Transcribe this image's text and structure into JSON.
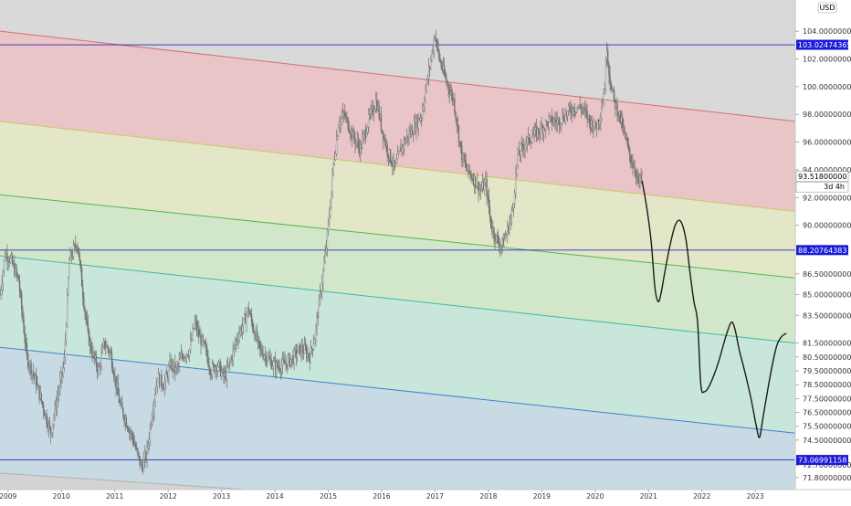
{
  "currency_button": "USD",
  "countdown": "3d 4h",
  "colors": {
    "pane_bg": "#d9d9d9",
    "zone_red": "#eac5c7",
    "zone_yellow": "#e3e6c7",
    "zone_green": "#d2e7c9",
    "zone_teal": "#c9e6da",
    "zone_blue": "#c8dbe4",
    "line_red": "#d07070",
    "line_yellow": "#c8c860",
    "line_green": "#50b850",
    "line_teal": "#40b8a0",
    "line_blue": "#4080d0",
    "hline": "#2828c0",
    "tag_blue": "#1a1ad8",
    "price_series": "#6e6e6e",
    "projection": "#1a1a1a"
  },
  "chart_data": {
    "type": "line",
    "ylim": [
      71.0,
      105.0
    ],
    "xlim": [
      2008.85,
      2023.75
    ],
    "grid": false,
    "y_ticks": [
      "104.00000000",
      "102.00000000",
      "100.00000000",
      "98.00000000",
      "96.00000000",
      "94.00000000",
      "92.00000000",
      "90.00000000",
      "86.50000000",
      "85.00000000",
      "83.50000000",
      "81.50000000",
      "80.50000000",
      "79.50000000",
      "78.50000000",
      "77.50000000",
      "76.50000000",
      "75.50000000",
      "74.50000000",
      "72.70000000",
      "71.80000000"
    ],
    "x_ticks": [
      "2009",
      "2010",
      "2011",
      "2012",
      "2013",
      "2014",
      "2015",
      "2016",
      "2017",
      "2018",
      "2019",
      "2020",
      "2021",
      "2022",
      "2023"
    ],
    "horizontal_levels": [
      {
        "label": "103.02474365",
        "value": 103.02
      },
      {
        "label": "88.20764383",
        "value": 88.21
      },
      {
        "label": "73.06991158",
        "value": 73.07
      }
    ],
    "current_price": {
      "label": "93.51800000",
      "value": 93.52
    },
    "channels": [
      {
        "name": "red",
        "start": [
          2008.85,
          104.0
        ],
        "end": [
          2023.75,
          97.5
        ]
      },
      {
        "name": "yellow",
        "start": [
          2008.85,
          97.5
        ],
        "end": [
          2023.75,
          91.0
        ]
      },
      {
        "name": "green",
        "start": [
          2008.85,
          92.2
        ],
        "end": [
          2023.75,
          86.2
        ]
      },
      {
        "name": "teal",
        "start": [
          2008.85,
          87.8
        ],
        "end": [
          2023.75,
          81.5
        ]
      },
      {
        "name": "blue",
        "start": [
          2008.85,
          81.2
        ],
        "end": [
          2023.75,
          75.0
        ]
      }
    ],
    "series": [
      {
        "type": "price",
        "x": [
          2008.85,
          2008.95,
          2009.05,
          2009.2,
          2009.35,
          2009.5,
          2009.65,
          2009.8,
          2009.92,
          2010.05,
          2010.15,
          2010.3,
          2010.42,
          2010.5,
          2010.6,
          2010.7,
          2010.8,
          2010.92,
          2011.0,
          2011.1,
          2011.25,
          2011.35,
          2011.42,
          2011.5,
          2011.6,
          2011.7,
          2011.8,
          2011.92,
          2012.05,
          2012.15,
          2012.25,
          2012.4,
          2012.5,
          2012.58,
          2012.7,
          2012.8,
          2012.92,
          2013.05,
          2013.15,
          2013.3,
          2013.42,
          2013.5,
          2013.6,
          2013.72,
          2013.85,
          2013.95,
          2014.05,
          2014.2,
          2014.35,
          2014.45,
          2014.55,
          2014.65,
          2014.75,
          2014.85,
          2014.95,
          2015.05,
          2015.1,
          2015.2,
          2015.3,
          2015.45,
          2015.6,
          2015.75,
          2015.9,
          2016.0,
          2016.1,
          2016.25,
          2016.35,
          2016.5,
          2016.6,
          2016.75,
          2016.9,
          2017.0,
          2017.08,
          2017.2,
          2017.35,
          2017.5,
          2017.6,
          2017.7,
          2017.85,
          2017.95,
          2018.05,
          2018.15,
          2018.25,
          2018.35,
          2018.45,
          2018.55,
          2018.7,
          2018.85,
          2019.0,
          2019.15,
          2019.3,
          2019.45,
          2019.6,
          2019.75,
          2019.9,
          2020.0,
          2020.1,
          2020.18,
          2020.22,
          2020.26,
          2020.35,
          2020.45,
          2020.55,
          2020.65,
          2020.75,
          2020.82,
          2020.88
        ],
        "values": [
          85.0,
          88.0,
          87.5,
          86.0,
          80.5,
          79.0,
          77.0,
          75.0,
          77.5,
          80.0,
          87.5,
          88.8,
          84.5,
          82.0,
          80.5,
          79.5,
          81.5,
          80.8,
          79.0,
          77.0,
          75.5,
          74.5,
          73.5,
          72.5,
          73.5,
          76.5,
          79.0,
          78.5,
          80.0,
          79.5,
          80.5,
          81.0,
          83.0,
          82.0,
          81.0,
          79.5,
          80.0,
          79.0,
          80.0,
          82.0,
          83.0,
          84.0,
          82.5,
          81.0,
          80.5,
          80.0,
          79.8,
          80.0,
          80.5,
          81.0,
          81.0,
          80.5,
          82.0,
          85.0,
          88.0,
          92.0,
          94.5,
          97.5,
          98.0,
          96.5,
          95.5,
          97.5,
          99.0,
          97.0,
          95.5,
          94.0,
          95.5,
          96.5,
          97.0,
          98.0,
          101.5,
          103.8,
          102.0,
          100.5,
          99.0,
          95.0,
          94.0,
          93.5,
          92.5,
          93.0,
          90.0,
          89.0,
          88.5,
          89.5,
          91.0,
          95.0,
          96.0,
          96.5,
          97.0,
          97.5,
          97.5,
          98.0,
          98.5,
          98.5,
          97.5,
          97.0,
          98.0,
          100.0,
          103.0,
          101.0,
          99.0,
          98.0,
          96.5,
          95.0,
          94.0,
          93.0,
          93.5
        ]
      },
      {
        "type": "projection",
        "x": [
          2020.88,
          2020.97,
          2021.05,
          2021.12,
          2021.18,
          2021.23,
          2021.3,
          2021.4,
          2021.5,
          2021.6,
          2021.7,
          2021.78,
          2021.85,
          2021.92,
          2021.98,
          2022.05,
          2022.15,
          2022.3,
          2022.45,
          2022.55,
          2022.62,
          2022.7,
          2022.8,
          2022.92,
          2023.02,
          2023.08,
          2023.14,
          2023.25,
          2023.35,
          2023.42,
          2023.5,
          2023.58
        ],
        "values": [
          93.2,
          91.2,
          88.8,
          85.5,
          84.5,
          85.0,
          86.5,
          88.5,
          90.0,
          90.3,
          89.0,
          86.5,
          84.5,
          83.0,
          78.5,
          78.0,
          78.5,
          80.0,
          82.0,
          83.0,
          82.5,
          81.0,
          79.5,
          77.5,
          75.5,
          74.7,
          76.0,
          78.5,
          80.5,
          81.5,
          82.0,
          82.2
        ]
      }
    ]
  }
}
